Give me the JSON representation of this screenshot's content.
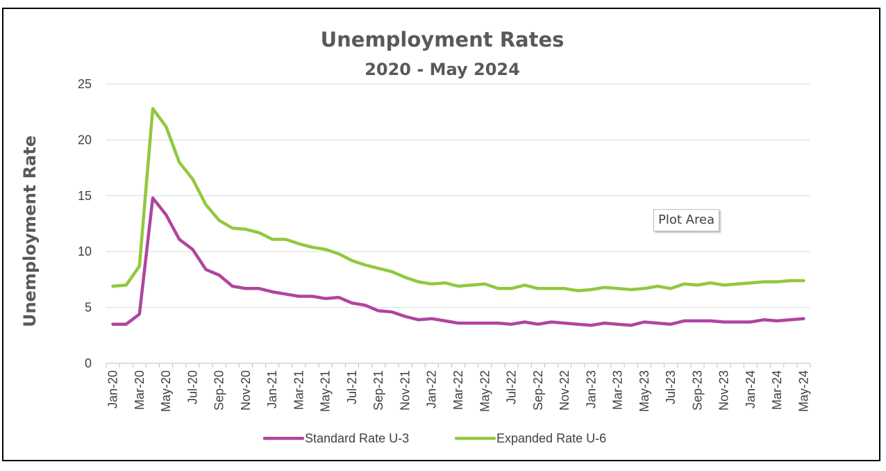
{
  "chart_data": {
    "type": "line",
    "title": "Unemployment Rates",
    "subtitle": "2020 - May 2024",
    "ylabel": "Unemployment Rate",
    "xlabel": "",
    "ylim": [
      0,
      25
    ],
    "yticks": [
      0,
      5,
      10,
      15,
      20,
      25
    ],
    "grid": true,
    "legend": "bottom",
    "x": [
      "Jan-20",
      "Feb-20",
      "Mar-20",
      "Apr-20",
      "May-20",
      "Jun-20",
      "Jul-20",
      "Aug-20",
      "Sep-20",
      "Oct-20",
      "Nov-20",
      "Dec-20",
      "Jan-21",
      "Feb-21",
      "Mar-21",
      "Apr-21",
      "May-21",
      "Jun-21",
      "Jul-21",
      "Aug-21",
      "Sep-21",
      "Oct-21",
      "Nov-21",
      "Dec-21",
      "Jan-22",
      "Feb-22",
      "Mar-22",
      "Apr-22",
      "May-22",
      "Jun-22",
      "Jul-22",
      "Aug-22",
      "Sep-22",
      "Oct-22",
      "Nov-22",
      "Dec-22",
      "Jan-23",
      "Feb-23",
      "Mar-23",
      "Apr-23",
      "May-23",
      "Jun-23",
      "Jul-23",
      "Aug-23",
      "Sep-23",
      "Oct-23",
      "Nov-23",
      "Dec-23",
      "Jan-24",
      "Feb-24",
      "Mar-24",
      "Apr-24",
      "May-24"
    ],
    "xtick_labels": [
      "Jan-20",
      "Mar-20",
      "May-20",
      "Jul-20",
      "Sep-20",
      "Nov-20",
      "Jan-21",
      "Mar-21",
      "May-21",
      "Jul-21",
      "Sep-21",
      "Nov-21",
      "Jan-22",
      "Mar-22",
      "May-22",
      "Jul-22",
      "Sep-22",
      "Nov-22",
      "Jan-23",
      "Mar-23",
      "May-23",
      "Jul-23",
      "Sep-23",
      "Nov-23",
      "Jan-24",
      "Mar-24",
      "May-24"
    ],
    "series": [
      {
        "name": "Standard Rate U-3",
        "color": "#b0449e",
        "values": [
          3.5,
          3.5,
          4.4,
          14.8,
          13.3,
          11.1,
          10.2,
          8.4,
          7.9,
          6.9,
          6.7,
          6.7,
          6.4,
          6.2,
          6.0,
          6.0,
          5.8,
          5.9,
          5.4,
          5.2,
          4.7,
          4.6,
          4.2,
          3.9,
          4.0,
          3.8,
          3.6,
          3.6,
          3.6,
          3.6,
          3.5,
          3.7,
          3.5,
          3.7,
          3.6,
          3.5,
          3.4,
          3.6,
          3.5,
          3.4,
          3.7,
          3.6,
          3.5,
          3.8,
          3.8,
          3.8,
          3.7,
          3.7,
          3.7,
          3.9,
          3.8,
          3.9,
          4.0
        ]
      },
      {
        "name": "Expanded Rate U-6",
        "color": "#92c83e",
        "values": [
          6.9,
          7.0,
          8.7,
          22.8,
          21.2,
          18.0,
          16.5,
          14.2,
          12.8,
          12.1,
          12.0,
          11.7,
          11.1,
          11.1,
          10.7,
          10.4,
          10.2,
          9.8,
          9.2,
          8.8,
          8.5,
          8.2,
          7.7,
          7.3,
          7.1,
          7.2,
          6.9,
          7.0,
          7.1,
          6.7,
          6.7,
          7.0,
          6.7,
          6.7,
          6.7,
          6.5,
          6.6,
          6.8,
          6.7,
          6.6,
          6.7,
          6.9,
          6.7,
          7.1,
          7.0,
          7.2,
          7.0,
          7.1,
          7.2,
          7.3,
          7.3,
          7.4,
          7.4
        ]
      }
    ]
  },
  "tooltip": {
    "label": "Plot Area"
  }
}
